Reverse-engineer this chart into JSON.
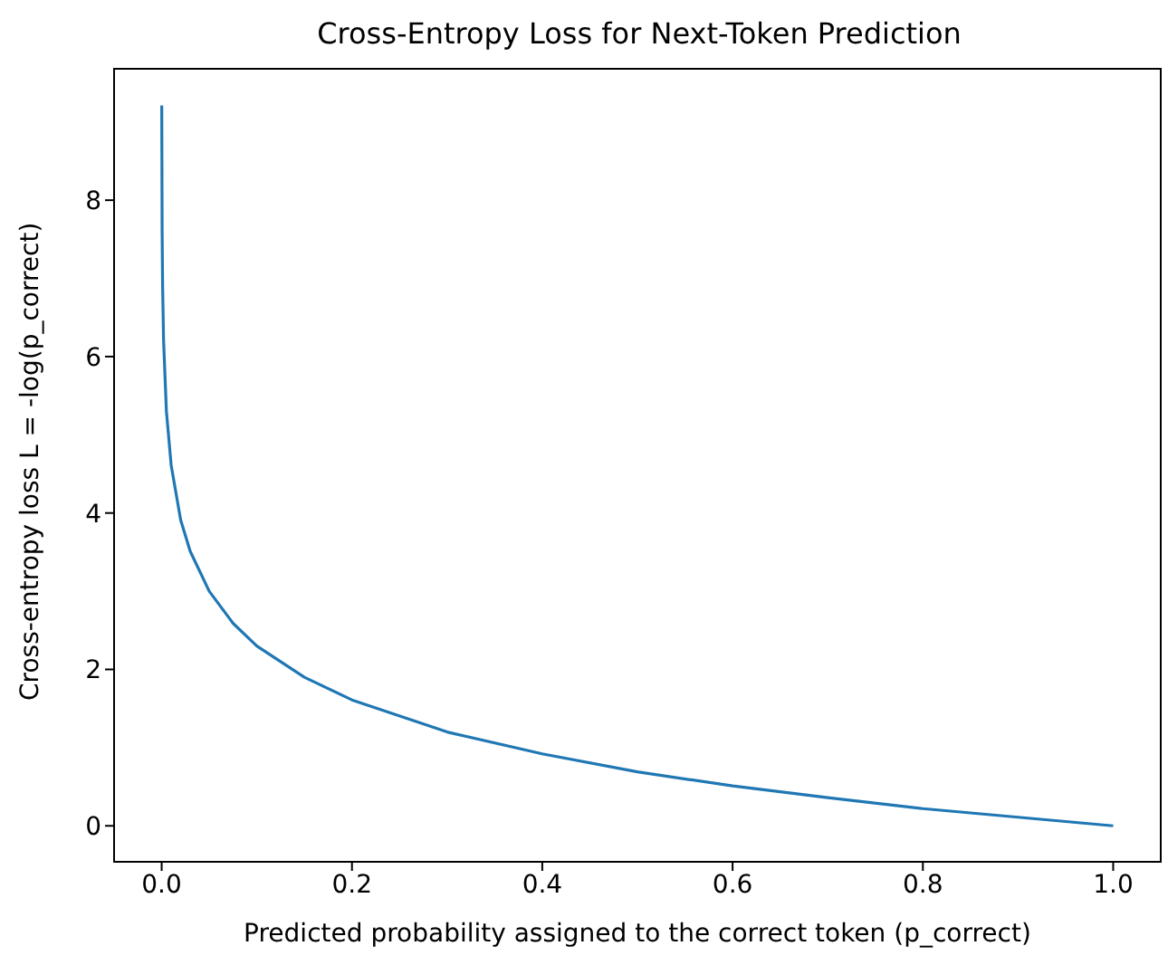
{
  "chart_data": {
    "type": "line",
    "title": "Cross-Entropy Loss for Next-Token Prediction",
    "xlabel": "Predicted probability assigned to the correct token (p_correct)",
    "ylabel": "Cross-entropy loss  L = -log(p_correct)",
    "series": [
      {
        "color": "#1f77b4",
        "x": [
          0.0001,
          0.0005,
          0.001,
          0.002,
          0.005,
          0.01,
          0.02,
          0.03,
          0.05,
          0.075,
          0.1,
          0.15,
          0.2,
          0.3,
          0.4,
          0.5,
          0.6,
          0.7,
          0.8,
          0.9,
          1.0
        ],
        "values": [
          9.21,
          7.6,
          6.91,
          6.21,
          5.3,
          4.61,
          3.91,
          3.51,
          3.0,
          2.59,
          2.3,
          1.9,
          1.61,
          1.2,
          0.92,
          0.69,
          0.51,
          0.36,
          0.22,
          0.11,
          0
        ]
      }
    ],
    "xlim": [
      -0.05,
      1.05
    ],
    "ylim": [
      -0.46,
      9.68
    ],
    "xticks": [
      {
        "value": 0,
        "label": "0.0"
      },
      {
        "value": 0.2,
        "label": "0.2"
      },
      {
        "value": 0.4,
        "label": "0.4"
      },
      {
        "value": 0.6,
        "label": "0.6"
      },
      {
        "value": 0.8,
        "label": "0.8"
      },
      {
        "value": 1,
        "label": "1.0"
      }
    ],
    "yticks": [
      0,
      2,
      4,
      6,
      8
    ],
    "grid": false
  }
}
